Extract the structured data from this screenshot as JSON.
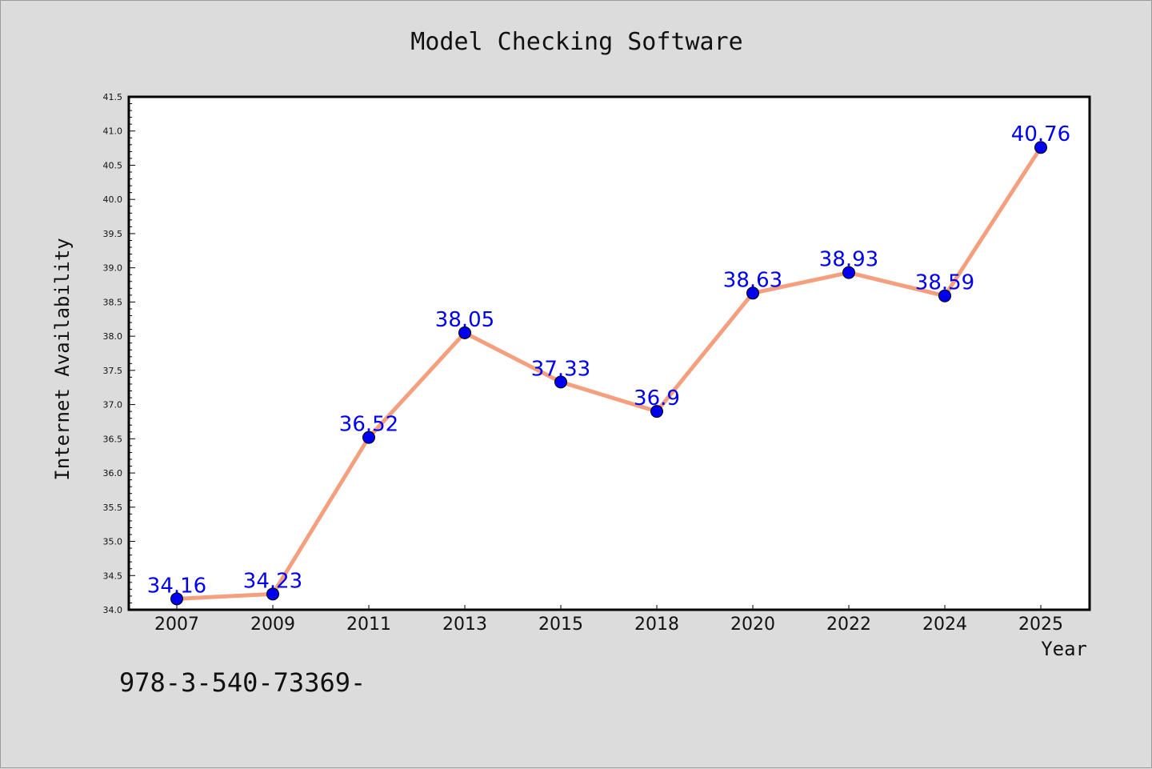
{
  "chart_data": {
    "type": "line",
    "title": "Model Checking Software",
    "xlabel": "Year",
    "ylabel": "Internet Availability",
    "categories": [
      "2007",
      "2009",
      "2011",
      "2013",
      "2015",
      "2018",
      "2020",
      "2022",
      "2024",
      "2025"
    ],
    "values": [
      34.16,
      34.23,
      36.52,
      38.05,
      37.33,
      36.9,
      38.63,
      38.93,
      38.59,
      40.76
    ],
    "value_labels": [
      "34.16",
      "34.23",
      "36.52",
      "38.05",
      "37.33",
      "36.9",
      "38.63",
      "38.93",
      "38.59",
      "40.76"
    ],
    "ylim": [
      34.0,
      41.5
    ],
    "yticks": [
      "34.0",
      "34.5",
      "35.0",
      "35.5",
      "36.0",
      "36.5",
      "37.0",
      "37.5",
      "38.0",
      "38.5",
      "39.0",
      "39.5",
      "40.0",
      "40.5",
      "41.0",
      "41.5"
    ],
    "grid": false,
    "line_color": "#f4a07e",
    "marker_color": "#0000ee",
    "label_color": "#0000ee"
  },
  "footnote": "978-3-540-73369-"
}
